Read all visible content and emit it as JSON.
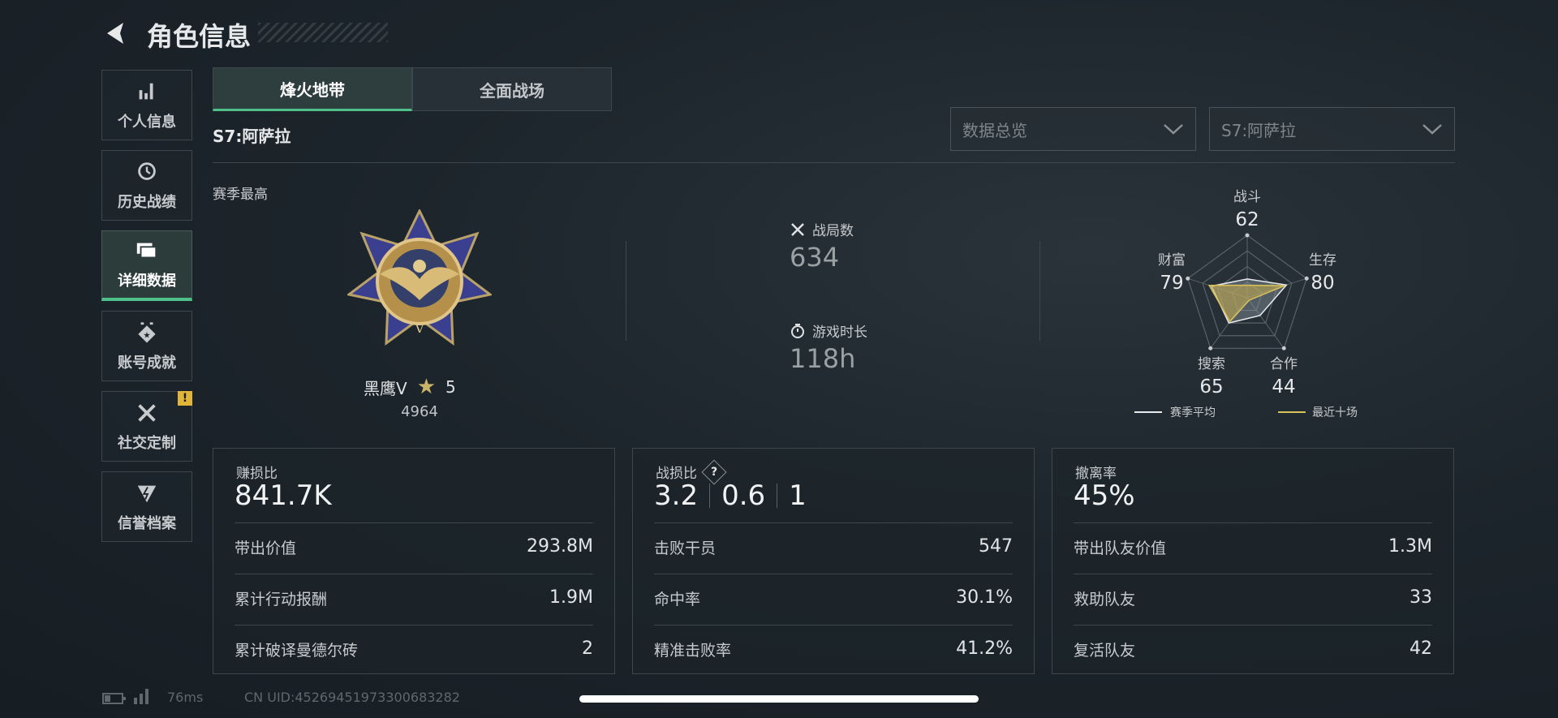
{
  "header": {
    "title": "角色信息",
    "back_icon": "chevron-left-icon"
  },
  "sidebar": {
    "items": [
      {
        "label": "个人信息",
        "icon": "bar-chart-icon",
        "active": false
      },
      {
        "label": "历史战绩",
        "icon": "history-clock-icon",
        "active": false
      },
      {
        "label": "详细数据",
        "icon": "folder-icon",
        "active": true
      },
      {
        "label": "账号成就",
        "icon": "medal-icon",
        "active": false
      },
      {
        "label": "社交定制",
        "icon": "tools-icon",
        "active": false,
        "badge": "!"
      },
      {
        "label": "信誉档案",
        "icon": "shield-icon",
        "active": false
      }
    ]
  },
  "tabs": [
    {
      "label": "烽火地带",
      "active": true
    },
    {
      "label": "全面战场",
      "active": false
    }
  ],
  "season_label": "S7:阿萨拉",
  "dropdowns": [
    {
      "value": "数据总览"
    },
    {
      "value": "S7:阿萨拉"
    }
  ],
  "rank": {
    "section_label": "赛季最高",
    "name": "黑鹰V",
    "stars": "5",
    "score": "4964"
  },
  "summary": {
    "matches_label": "战局数",
    "matches": "634",
    "time_label": "游戏时长",
    "time": "118h"
  },
  "chart_data": {
    "type": "radar",
    "axes": [
      {
        "label": "战斗",
        "value": "62"
      },
      {
        "label": "生存",
        "value": "80"
      },
      {
        "label": "合作",
        "value": "44"
      },
      {
        "label": "搜索",
        "value": "65"
      },
      {
        "label": "财富",
        "value": "79"
      }
    ],
    "series": [
      {
        "name": "赛季平均",
        "color": "#e8eaec",
        "levels": [
          0.3,
          0.66,
          0.35,
          0.5,
          0.6
        ]
      },
      {
        "name": "最近十场",
        "color": "#d9c25a",
        "levels": [
          0.2,
          0.63,
          0.05,
          0.47,
          0.64
        ]
      }
    ]
  },
  "cards": [
    {
      "title": "赚损比",
      "value": "841.7K",
      "rows": [
        {
          "label": "带出价值",
          "value": "293.8M"
        },
        {
          "label": "累计行动报酬",
          "value": "1.9M"
        },
        {
          "label": "累计破译曼德尔砖",
          "value": "2"
        }
      ]
    },
    {
      "title": "战损比",
      "help": "?",
      "values": [
        "3.2",
        "0.6",
        "1"
      ],
      "rows": [
        {
          "label": "击败干员",
          "value": "547"
        },
        {
          "label": "命中率",
          "value": "30.1%"
        },
        {
          "label": "精准击败率",
          "value": "41.2%"
        }
      ]
    },
    {
      "title": "撤离率",
      "value": "45%",
      "rows": [
        {
          "label": "带出队友价值",
          "value": "1.3M"
        },
        {
          "label": "救助队友",
          "value": "33"
        },
        {
          "label": "复活队友",
          "value": "42"
        }
      ]
    }
  ],
  "footer": {
    "ping": "76ms",
    "uid": "CN UID:45269451973300683282"
  }
}
